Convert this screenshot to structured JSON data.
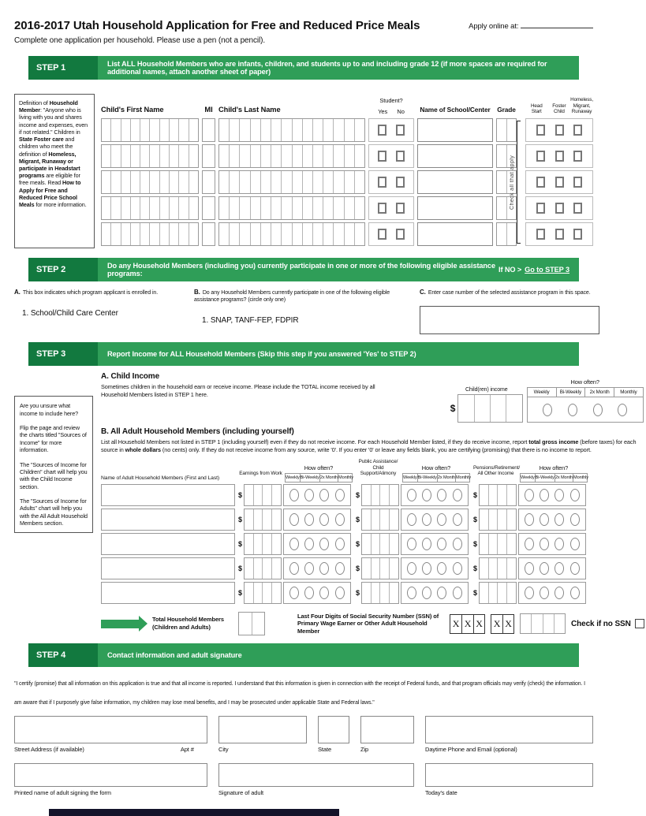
{
  "header": {
    "title": "2016-2017 Utah Household Application for Free and Reduced Price Meals",
    "subtitle": "Complete one application per household. Please use a pen (not a pencil).",
    "apply_online_label": "Apply online at:"
  },
  "frequencies": [
    "Weekly",
    "Bi-Weekly",
    "2x Month",
    "Monthly"
  ],
  "how_often": "How often?",
  "dollar": "$",
  "steps": {
    "step1": {
      "label": "STEP 1",
      "title": "List ALL Household Members who are infants, children, and students up to and including grade 12 (if more spaces are required for additional names, attach another sheet of paper)"
    },
    "step2": {
      "label": "STEP 2",
      "title": "Do any Household Members (including you) currently participate in one or more of the following eligible assistance programs:",
      "if_no": "If NO >",
      "goto_link": "Go to STEP 3"
    },
    "step3": {
      "label": "STEP 3",
      "title": "Report Income for ALL Household Members  (Skip this step if you answered 'Yes' to STEP 2)"
    },
    "step4": {
      "label": "STEP 4",
      "title": "Contact information and adult signature"
    }
  },
  "step1": {
    "row_count": 5,
    "definition_runs": [
      {
        "t": "Definition of ",
        "b": false
      },
      {
        "t": "Household Member",
        "b": true
      },
      {
        "t": ": \"Anyone who is living with you and shares income and expenses, even if not related.\" Children in ",
        "b": false
      },
      {
        "t": "State Foster care",
        "b": true
      },
      {
        "t": " and children who meet the definition of ",
        "b": false
      },
      {
        "t": "Homeless, Migrant, Runaway or participate in Headstart programs",
        "b": true
      },
      {
        "t": " are eligible for free meals. Read ",
        "b": false
      },
      {
        "t": "How to Apply for Free and Reduced Price School Meals",
        "b": true
      },
      {
        "t": " for more information.",
        "b": false
      }
    ],
    "columns": {
      "first_name": "Child's First Name",
      "mi": "MI",
      "last_name": "Child's Last Name",
      "student": "Student?",
      "yes": "Yes",
      "no": "No",
      "school": "Name of School/Center",
      "grade": "Grade",
      "head_start": "Head Start",
      "foster_child": "Foster Child",
      "homeless": "Homeless, Migrant, Runaway",
      "check_all": "Check all that apply"
    }
  },
  "step2": {
    "a": {
      "letter": "A.",
      "text": "This box indicates which program applicant is enrolled in.",
      "item": "1.  School/Child Care Center"
    },
    "b": {
      "letter": "B.",
      "text": "Do any Household Members currently participate in one of the following eligible assistance programs? (circle only one)",
      "item": "1. SNAP, TANF-FEP, FDPIR"
    },
    "c": {
      "letter": "C.",
      "text": "Enter case number of the selected assistance program in this space."
    }
  },
  "step3": {
    "sidebar": [
      "Are you unsure what income to include here?",
      "Flip the page and review the charts titled \"Sources of Income\" for more information.",
      "The \"Sources of Income for Children\" chart will help you with the Child Income section.",
      "The \"Sources of Income for Adults\" chart will help you with the All Adult Household Members section."
    ],
    "child_income": {
      "heading": "A. Child Income",
      "text": "Sometimes children in the household earn or receive income. Please include the TOTAL income received by all Household Members listed in STEP 1 here.",
      "label": "Child(ren) income"
    },
    "adult": {
      "heading": "B. All Adult Household Members (including yourself)",
      "row_count": 5,
      "text_runs": [
        {
          "t": "List all Household Members not listed in STEP 1 (including yourself) even if they do not receive income. For each Household Member listed, if they do receive income, report ",
          "b": false
        },
        {
          "t": "total gross income",
          "b": true
        },
        {
          "t": " (before taxes) for each source in ",
          "b": false
        },
        {
          "t": "whole dollars",
          "b": true
        },
        {
          "t": " (no cents) only. If they do not receive income from any source, write '0'. If you enter '0' or leave any fields blank, you are certifying (promising) that there is no income to report.",
          "b": false
        }
      ],
      "name_col": "Name of Adult Household Members (First and Last)",
      "group1": "Earnings from Work",
      "group2": "Public Assistance/ Child Support/Alimony",
      "group3": "Pensions/Retirement/ All Other Income"
    },
    "totals": {
      "total_label": "Total Household Members (Children and Adults)",
      "ssn_label": "Last Four Digits of Social Security Number (SSN) of Primary Wage Earner or Other Adult Household Member",
      "x": "X",
      "no_ssn_label": "Check if no SSN"
    }
  },
  "step4": {
    "certify_text": "\"I certify (promise) that all information on this application is true and that all income is reported.  I understand that this information is given in connection with the receipt of Federal funds, and that program officials may verify (check) the information. I am aware that if I purposely give false information, my children may lose meal benefits, and I may be prosecuted under applicable State and Federal laws.\"",
    "labels": {
      "street": "Street Address (if available)",
      "apt": "Apt #",
      "city": "City",
      "state": "State",
      "zip": "Zip",
      "phone_email": "Daytime Phone and Email (optional)",
      "printed_name": "Printed name of adult signing the form",
      "signature": "Signature of adult",
      "date": "Today's date"
    }
  }
}
